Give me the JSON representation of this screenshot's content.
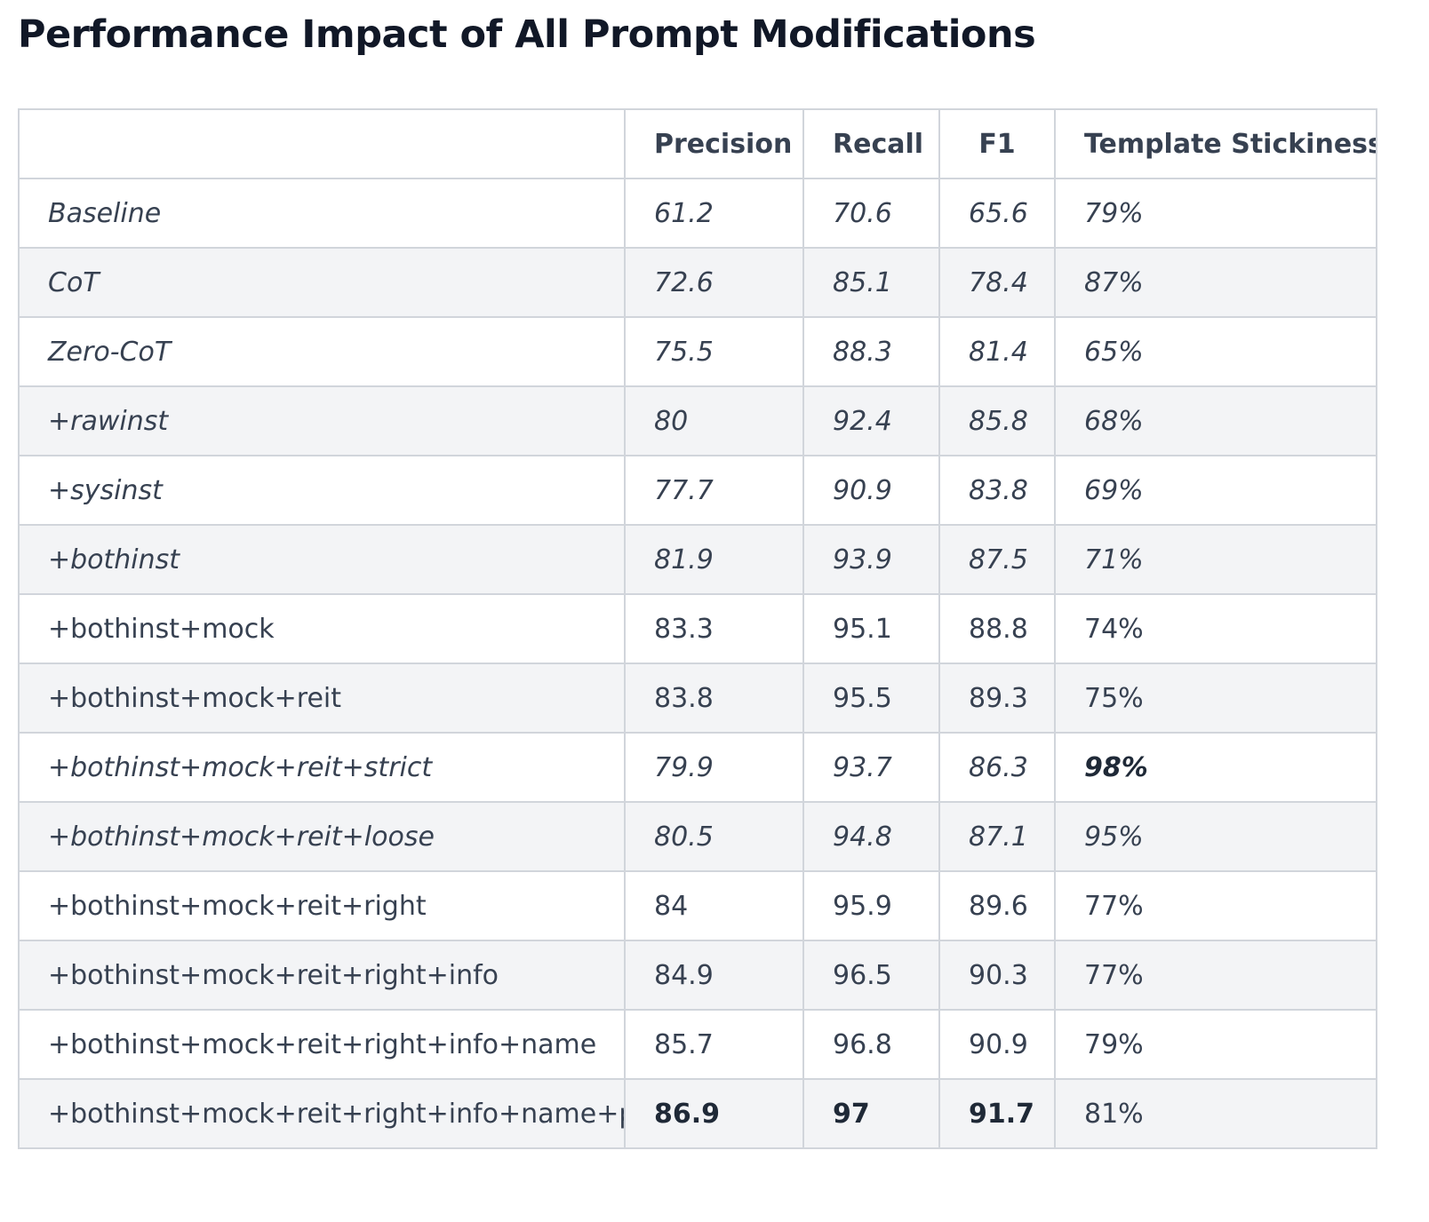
{
  "title": "Performance Impact of All Prompt Modifications",
  "table": {
    "headers": [
      "",
      "Precision",
      "Recall",
      "F1",
      "Template Stickiness"
    ],
    "rows": [
      {
        "name": "Baseline",
        "precision": "61.2",
        "recall": "70.6",
        "f1": "65.6",
        "stickiness": "79%",
        "italic": true
      },
      {
        "name": "CoT",
        "precision": "72.6",
        "recall": "85.1",
        "f1": "78.4",
        "stickiness": "87%",
        "italic": true
      },
      {
        "name": "Zero-CoT",
        "precision": "75.5",
        "recall": "88.3",
        "f1": "81.4",
        "stickiness": "65%",
        "italic": true
      },
      {
        "name": "+rawinst",
        "precision": "80",
        "recall": "92.4",
        "f1": "85.8",
        "stickiness": "68%",
        "italic": true
      },
      {
        "name": "+sysinst",
        "precision": "77.7",
        "recall": "90.9",
        "f1": "83.8",
        "stickiness": "69%",
        "italic": true
      },
      {
        "name": "+bothinst",
        "precision": "81.9",
        "recall": "93.9",
        "f1": "87.5",
        "stickiness": "71%",
        "italic": true
      },
      {
        "name": "+bothinst+mock",
        "precision": "83.3",
        "recall": "95.1",
        "f1": "88.8",
        "stickiness": "74%",
        "italic": false
      },
      {
        "name": "+bothinst+mock+reit",
        "precision": "83.8",
        "recall": "95.5",
        "f1": "89.3",
        "stickiness": "75%",
        "italic": false
      },
      {
        "name": "+bothinst+mock+reit+strict",
        "precision": "79.9",
        "recall": "93.7",
        "f1": "86.3",
        "stickiness": "98%",
        "italic": true
      },
      {
        "name": "+bothinst+mock+reit+loose",
        "precision": "80.5",
        "recall": "94.8",
        "f1": "87.1",
        "stickiness": "95%",
        "italic": true
      },
      {
        "name": "+bothinst+mock+reit+right",
        "precision": "84",
        "recall": "95.9",
        "f1": "89.6",
        "stickiness": "77%",
        "italic": false
      },
      {
        "name": "+bothinst+mock+reit+right+info",
        "precision": "84.9",
        "recall": "96.5",
        "f1": "90.3",
        "stickiness": "77%",
        "italic": false
      },
      {
        "name": "+bothinst+mock+reit+right+info+name",
        "precision": "85.7",
        "recall": "96.8",
        "f1": "90.9",
        "stickiness": "79%",
        "italic": false
      },
      {
        "name": "+bothinst+mock+reit+right+info+name+pos",
        "precision": "86.9",
        "recall": "97",
        "f1": "91.7",
        "stickiness": "81%",
        "italic": false
      }
    ],
    "best": {
      "precision": "86.9",
      "recall": "97",
      "f1": "91.7",
      "stickiness": "98%"
    }
  }
}
